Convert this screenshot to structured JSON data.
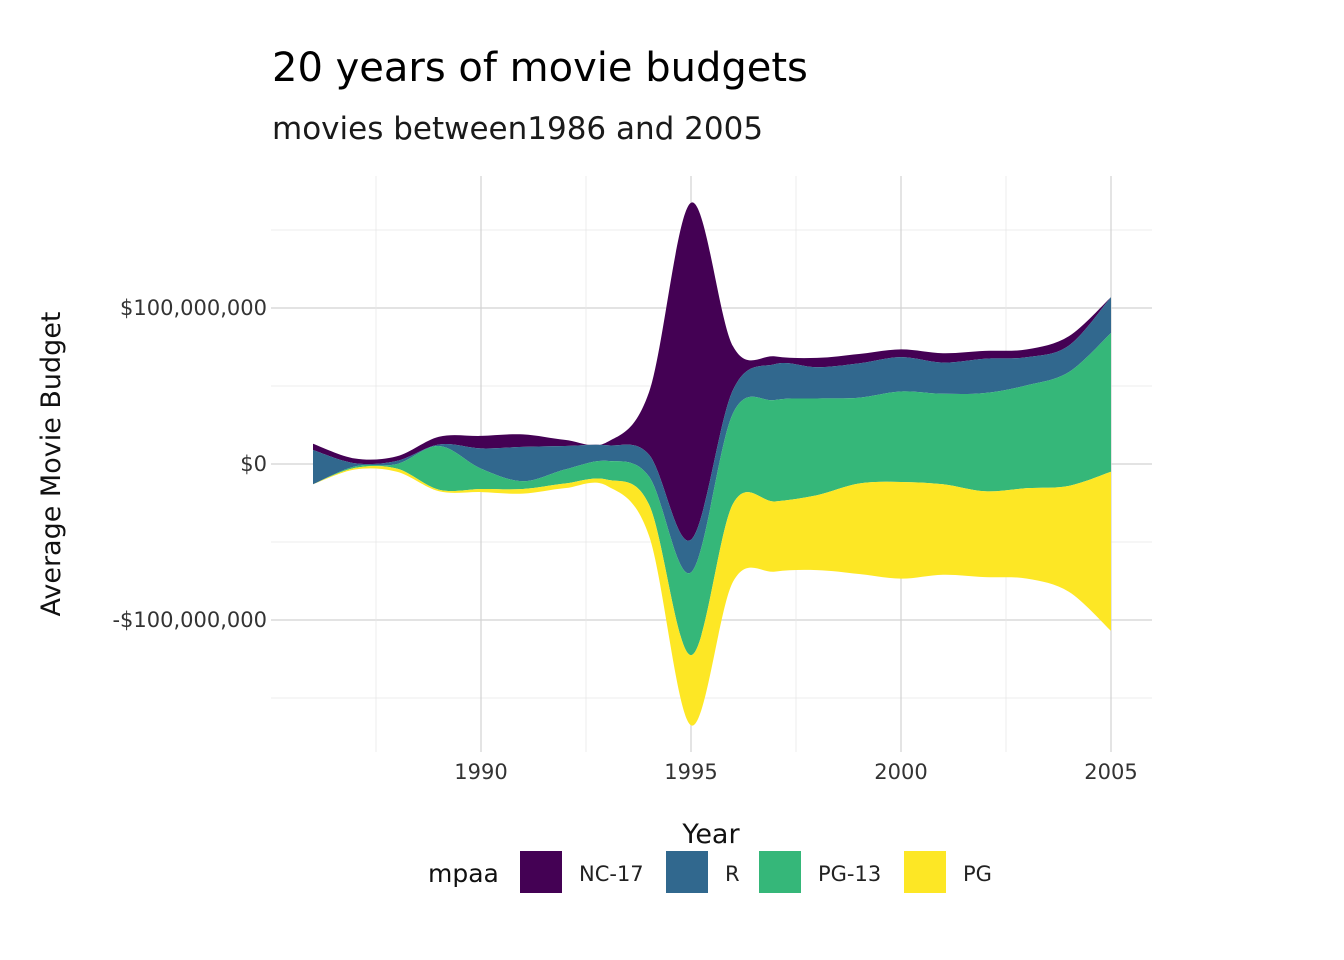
{
  "chart_data": {
    "type": "area",
    "subtype": "streamgraph",
    "title": "20 years of movie budgets",
    "subtitle": "movies between1986 and 2005",
    "xlabel": "Year",
    "ylabel": "Average Movie Budget",
    "xlim": [
      1986,
      2005
    ],
    "ylim": [
      -165000000,
      168000000
    ],
    "x_ticks": [
      1990,
      1995,
      2000,
      2005
    ],
    "x_tick_labels": [
      "1990",
      "1995",
      "2000",
      "2005"
    ],
    "y_ticks": [
      -100000000,
      0,
      100000000
    ],
    "y_tick_labels": [
      "-$100,000,000",
      "$0",
      "$100,000,000"
    ],
    "grid": true,
    "legend": {
      "title": "mpaa",
      "position": "bottom"
    },
    "x": [
      1986,
      1987,
      1988,
      1989,
      1990,
      1991,
      1992,
      1993,
      1994,
      1995,
      1996,
      1997,
      1998,
      1999,
      2000,
      2001,
      2002,
      2003,
      2004,
      2005
    ],
    "series": [
      {
        "name": "NC-17",
        "color": "#440154",
        "values": [
          4000000,
          3000000,
          3000000,
          5000000,
          8000000,
          8000000,
          4000000,
          2000000,
          40000000,
          216000000,
          28000000,
          5000000,
          6000000,
          6000000,
          5000000,
          6000000,
          5000000,
          5000000,
          6000000,
          0
        ]
      },
      {
        "name": "R",
        "color": "#31688e",
        "values": [
          22000000,
          2000000,
          2000000,
          1000000,
          13000000,
          22000000,
          15000000,
          10000000,
          14000000,
          21000000,
          15000000,
          23000000,
          20000000,
          22000000,
          22000000,
          20000000,
          22000000,
          18000000,
          17000000,
          23000000
        ]
      },
      {
        "name": "PG-13",
        "color": "#35b779",
        "values": [
          0,
          1000000,
          3000000,
          28000000,
          13000000,
          5000000,
          9000000,
          12000000,
          18000000,
          53000000,
          58000000,
          65000000,
          62000000,
          55000000,
          58000000,
          58000000,
          63000000,
          66000000,
          73000000,
          89000000
        ]
      },
      {
        "name": "PG",
        "color": "#fde725",
        "values": [
          0,
          1000000,
          2000000,
          1000000,
          2000000,
          3000000,
          3000000,
          4000000,
          20000000,
          45000000,
          50000000,
          45000000,
          48000000,
          58000000,
          62000000,
          58000000,
          55000000,
          58000000,
          68000000,
          102000000
        ]
      }
    ]
  }
}
